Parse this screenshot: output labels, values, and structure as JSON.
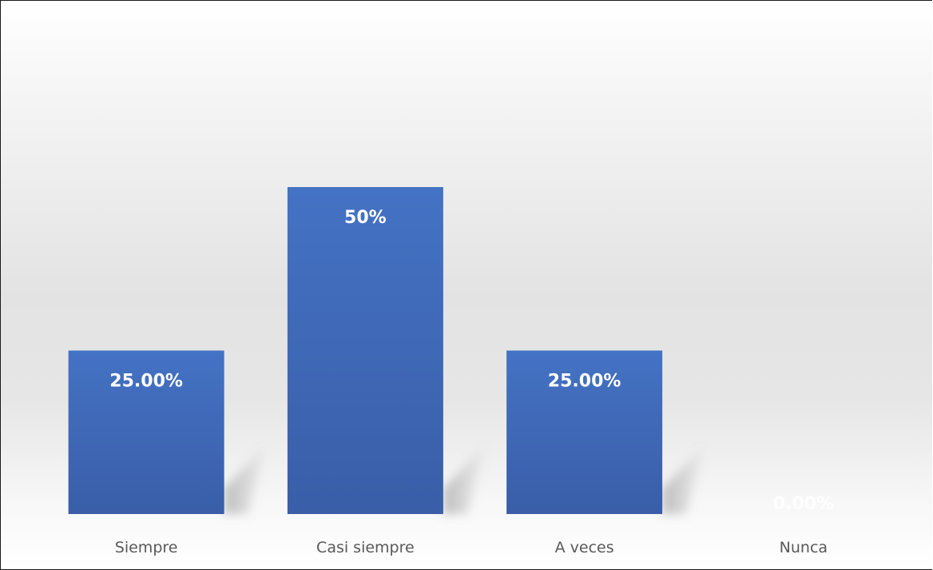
{
  "chart_data": {
    "type": "bar",
    "title": "",
    "xlabel": "",
    "ylabel": "",
    "categories": [
      "Siempre",
      "Casi siempre",
      "A veces",
      "Nunca"
    ],
    "values": [
      25,
      50,
      25,
      0
    ],
    "data_labels": [
      "25.00%",
      "50%",
      "25.00%",
      "0.00%"
    ],
    "ylim": [
      0,
      75
    ],
    "grid": false,
    "legend": "none",
    "colors": {
      "bar_top": "#4472c4",
      "bar_bottom": "#3a5ea8",
      "data_label": "#ffffff",
      "tick_label": "#595959"
    }
  }
}
